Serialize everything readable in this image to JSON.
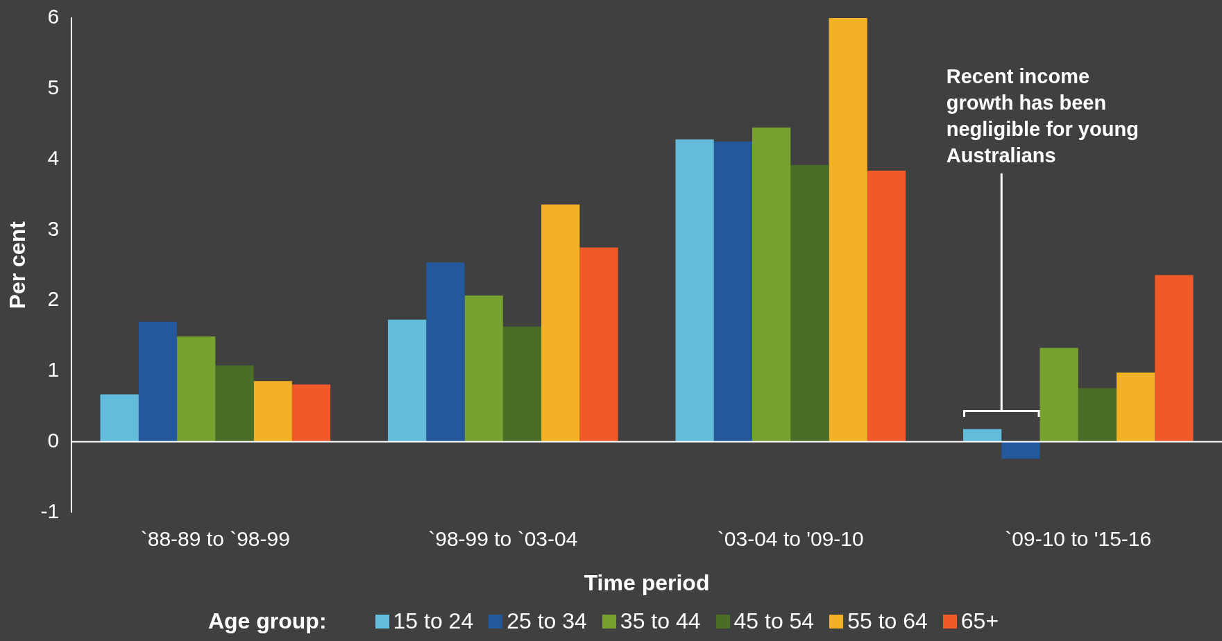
{
  "chart_data": {
    "type": "bar",
    "xlabel": "Time period",
    "ylabel": "Per cent",
    "legend_title": "Age group:",
    "legend": "bottom",
    "categories": [
      "`88-89 to `98-99",
      "`98-99 to `03-04",
      "`03-04 to '09-10",
      "`09-10 to '15-16"
    ],
    "series": [
      {
        "name": "15 to 24",
        "color": "#63bcdc",
        "values": [
          0.67,
          1.73,
          4.28,
          0.18
        ]
      },
      {
        "name": "25 to 34",
        "color": "#23589b",
        "values": [
          1.7,
          2.54,
          4.25,
          -0.24
        ]
      },
      {
        "name": "35 to 44",
        "color": "#78a22f",
        "values": [
          1.49,
          2.07,
          4.45,
          1.33
        ]
      },
      {
        "name": "45 to 54",
        "color": "#4a6e28",
        "values": [
          1.08,
          1.63,
          3.92,
          0.76
        ]
      },
      {
        "name": "55 to 64",
        "color": "#f3b125",
        "values": [
          0.86,
          3.36,
          6.0,
          0.98
        ]
      },
      {
        "name": "65+",
        "color": "#ef5a28",
        "values": [
          0.81,
          2.75,
          3.84,
          2.36
        ]
      }
    ],
    "ylim": [
      -1,
      6
    ],
    "yticks": [
      -1,
      0,
      1,
      2,
      3,
      4,
      5,
      6
    ],
    "annotations": [
      "Recent income growth has been negligible for young Australians"
    ]
  }
}
